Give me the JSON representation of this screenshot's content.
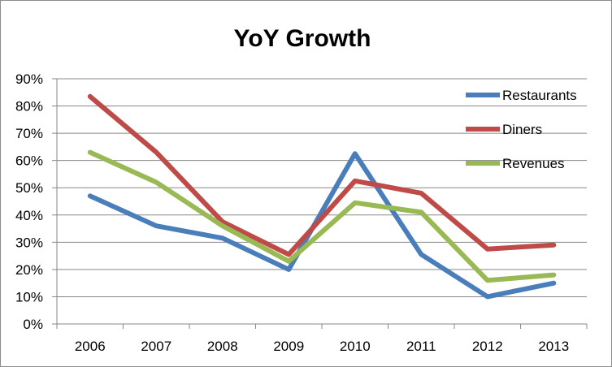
{
  "chart_data": {
    "type": "line",
    "title": "YoY Growth",
    "xlabel": "",
    "ylabel": "",
    "categories": [
      "2006",
      "2007",
      "2008",
      "2009",
      "2010",
      "2011",
      "2012",
      "2013"
    ],
    "y_ticks": [
      "0%",
      "10%",
      "20%",
      "30%",
      "40%",
      "50%",
      "60%",
      "70%",
      "80%",
      "90%"
    ],
    "ylim": [
      0,
      90
    ],
    "y_unit": "%",
    "grid": "horizontal",
    "legend_position": "right",
    "series": [
      {
        "name": "Restaurants",
        "color": "#4a7ebb",
        "values": [
          47,
          36,
          31.5,
          20,
          62.5,
          25.5,
          10,
          15
        ]
      },
      {
        "name": "Diners",
        "color": "#be4b48",
        "values": [
          83.5,
          63,
          37.5,
          25.5,
          52.5,
          48,
          27.5,
          29
        ]
      },
      {
        "name": "Revenues",
        "color": "#98b954",
        "values": [
          63,
          52,
          36,
          23,
          44.5,
          41,
          16,
          18
        ]
      }
    ]
  }
}
